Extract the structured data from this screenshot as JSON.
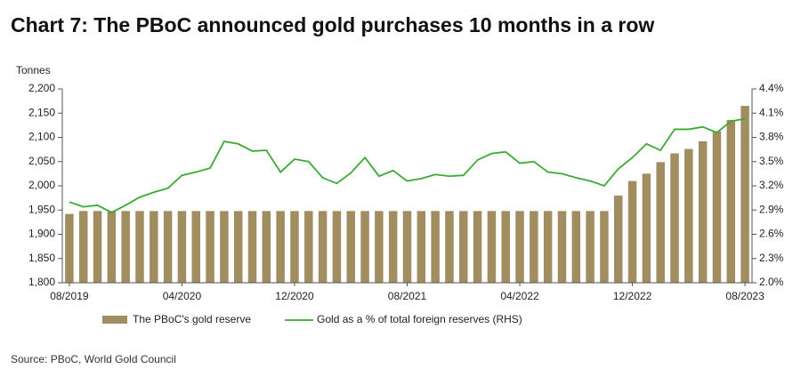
{
  "chart_data": {
    "type": "bar-line",
    "title": "Chart 7: The PBoC announced gold purchases 10 months in a row",
    "y_axis_label": "Tonnes",
    "source": "Source: PBoC, World Gold Council",
    "categories": [
      "08/2019",
      null,
      null,
      null,
      null,
      null,
      null,
      null,
      "04/2020",
      null,
      null,
      null,
      null,
      null,
      null,
      null,
      "12/2020",
      null,
      null,
      null,
      null,
      null,
      null,
      null,
      "08/2021",
      null,
      null,
      null,
      null,
      null,
      null,
      null,
      "04/2022",
      null,
      null,
      null,
      null,
      null,
      null,
      null,
      "12/2022",
      null,
      null,
      null,
      null,
      null,
      null,
      null,
      "08/2023"
    ],
    "series": [
      {
        "name": "The PBoC's gold reserve",
        "type": "bar",
        "color": "#a08d60",
        "values": [
          1942,
          1948,
          1948,
          1948,
          1948,
          1948,
          1948,
          1948,
          1948,
          1948,
          1948,
          1948,
          1948,
          1948,
          1948,
          1948,
          1948,
          1948,
          1948,
          1948,
          1948,
          1948,
          1948,
          1948,
          1948,
          1948,
          1948,
          1948,
          1948,
          1948,
          1948,
          1948,
          1948,
          1948,
          1948,
          1948,
          1948,
          1948,
          1948,
          1980,
          2010,
          2025,
          2049,
          2067,
          2076,
          2092,
          2113,
          2136,
          2165
        ]
      },
      {
        "name": "Gold as a % of total foreign reserves (RHS)",
        "type": "line",
        "axis": "y2",
        "color": "#3aaa35",
        "values": [
          3.0,
          2.94,
          2.96,
          2.87,
          2.96,
          3.06,
          3.12,
          3.17,
          3.33,
          3.37,
          3.42,
          3.75,
          3.72,
          3.63,
          3.64,
          3.37,
          3.53,
          3.5,
          3.3,
          3.23,
          3.36,
          3.55,
          3.32,
          3.39,
          3.26,
          3.29,
          3.34,
          3.32,
          3.33,
          3.52,
          3.6,
          3.62,
          3.48,
          3.5,
          3.37,
          3.35,
          3.3,
          3.26,
          3.2,
          3.41,
          3.55,
          3.72,
          3.64,
          3.9,
          3.9,
          3.93,
          3.86,
          4.0,
          4.03
        ]
      }
    ],
    "ylim": [
      1800,
      2200
    ],
    "yticks": [
      {
        "value": 1800,
        "label": "1,800"
      },
      {
        "value": 1850,
        "label": "1,850"
      },
      {
        "value": 1900,
        "label": "1,900"
      },
      {
        "value": 1950,
        "label": "1,950"
      },
      {
        "value": 2000,
        "label": "2,000"
      },
      {
        "value": 2050,
        "label": "2,050"
      },
      {
        "value": 2100,
        "label": "2,100"
      },
      {
        "value": 2150,
        "label": "2,150"
      },
      {
        "value": 2200,
        "label": "2,200"
      }
    ],
    "y2lim": [
      2.0,
      4.4
    ],
    "y2ticks": [
      {
        "value": 2.0,
        "label": "2.0%"
      },
      {
        "value": 2.3,
        "label": "2.3%"
      },
      {
        "value": 2.6,
        "label": "2.6%"
      },
      {
        "value": 2.9,
        "label": "2.9%"
      },
      {
        "value": 3.2,
        "label": "3.2%"
      },
      {
        "value": 3.5,
        "label": "3.5%"
      },
      {
        "value": 3.8,
        "label": "3.8%"
      },
      {
        "value": 4.1,
        "label": "4.1%"
      },
      {
        "value": 4.4,
        "label": "4.4%"
      }
    ],
    "grid": false,
    "legend": "bottom"
  }
}
